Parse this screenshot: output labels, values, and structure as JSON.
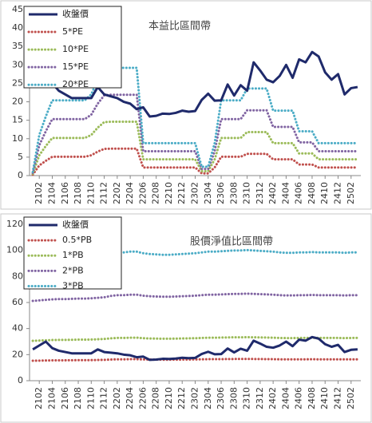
{
  "chart_data": [
    {
      "type": "line",
      "title": "本益比區間帶",
      "categories": [
        null,
        "2102",
        null,
        "2104",
        null,
        "2106",
        null,
        "2108",
        null,
        "2110",
        null,
        "2112",
        null,
        "2202",
        null,
        "2204",
        null,
        "2206",
        null,
        "2208",
        null,
        "2210",
        null,
        "2212",
        null,
        "2302",
        null,
        "2304",
        null,
        "2306",
        null,
        "2308",
        null,
        "2310",
        null,
        "2312",
        null,
        "2402",
        null,
        "2404",
        null,
        "2406",
        null,
        "2408",
        null,
        "2410",
        null,
        "2412",
        null,
        "2502",
        null
      ],
      "ylim": [
        0,
        45
      ],
      "yticks": [
        0,
        5,
        10,
        15,
        20,
        25,
        30,
        35,
        40,
        45
      ],
      "legend": "top-left",
      "series": [
        {
          "name": "收盤價",
          "color": "#1f2a6b",
          "line_style": "solid",
          "values": [
            24,
            27,
            30,
            25,
            23,
            22,
            21,
            21,
            21,
            21,
            24,
            22,
            21.5,
            21,
            20,
            19.5,
            18,
            18.5,
            16,
            16.2,
            16.8,
            16.7,
            17,
            17.6,
            17.3,
            17.5,
            20.5,
            22.2,
            20.3,
            20.4,
            24.7,
            21.7,
            24.5,
            23,
            30.7,
            28.5,
            26,
            25.3,
            27,
            30,
            26.5,
            31.5,
            30.7,
            33.5,
            32.3,
            28,
            26,
            27.5,
            22,
            23.7,
            24
          ]
        },
        {
          "name": "5*PE",
          "color": "#c0504d",
          "line_style": "dotted",
          "values": [
            0.25,
            2.75,
            4,
            5.1,
            5.1,
            5.1,
            5.1,
            5.1,
            5.1,
            5.5,
            6.5,
            7.25,
            7.3,
            7.3,
            7.3,
            7.3,
            7.3,
            2.2,
            2.2,
            2.2,
            2.2,
            2.2,
            2.2,
            2.2,
            2.2,
            2.2,
            0.6,
            0.6,
            2.2,
            5.1,
            5.1,
            5.1,
            5.1,
            5.9,
            5.9,
            5.9,
            5.9,
            4.4,
            4.4,
            4.4,
            4.4,
            3,
            3,
            3,
            2.2,
            2.2,
            2.2,
            2.2,
            2.2,
            2.2,
            2.2
          ]
        },
        {
          "name": "10*PE",
          "color": "#9bbb59",
          "line_style": "dotted",
          "values": [
            0.5,
            5.5,
            8,
            10.2,
            10.2,
            10.2,
            10.2,
            10.2,
            10.2,
            11,
            13,
            14.5,
            14.6,
            14.6,
            14.6,
            14.6,
            14.6,
            4.4,
            4.4,
            4.4,
            4.4,
            4.4,
            4.4,
            4.4,
            4.4,
            4.4,
            1.2,
            1.2,
            4.4,
            10.2,
            10.2,
            10.2,
            10.2,
            11.8,
            11.8,
            11.8,
            11.8,
            8.8,
            8.8,
            8.8,
            8.8,
            6,
            6,
            6,
            4.4,
            4.4,
            4.4,
            4.4,
            4.4,
            4.4,
            4.4
          ]
        },
        {
          "name": "15*PE",
          "color": "#8064a2",
          "line_style": "dotted",
          "values": [
            0.75,
            8.25,
            12,
            15.3,
            15.3,
            15.3,
            15.3,
            15.3,
            15.3,
            16.5,
            19.5,
            21.75,
            21.9,
            21.9,
            21.9,
            21.9,
            21.9,
            6.6,
            6.6,
            6.6,
            6.6,
            6.6,
            6.6,
            6.6,
            6.6,
            6.6,
            1.8,
            1.8,
            6.6,
            15.3,
            15.3,
            15.3,
            15.3,
            17.7,
            17.7,
            17.7,
            17.7,
            13.2,
            13.2,
            13.2,
            13.2,
            9,
            9,
            9,
            6.6,
            6.6,
            6.6,
            6.6,
            6.6,
            6.6,
            6.6
          ]
        },
        {
          "name": "20*PE",
          "color": "#4bacc6",
          "line_style": "dotted",
          "values": [
            1,
            11,
            16,
            20.4,
            20.4,
            20.4,
            20.4,
            20.4,
            20.4,
            22,
            26,
            29,
            29.2,
            29.2,
            29.2,
            29.2,
            29.2,
            8.8,
            8.8,
            8.8,
            8.8,
            8.8,
            8.8,
            8.8,
            8.8,
            8.8,
            2.4,
            2.4,
            8.8,
            20.4,
            20.4,
            20.4,
            20.4,
            23.6,
            23.6,
            23.6,
            23.6,
            17.6,
            17.6,
            17.6,
            17.6,
            12,
            12,
            12,
            8.8,
            8.8,
            8.8,
            8.8,
            8.8,
            8.8,
            8.8
          ]
        }
      ]
    },
    {
      "type": "line",
      "title": "股價淨值比區間帶",
      "categories": [
        null,
        "2102",
        null,
        "2104",
        null,
        "2106",
        null,
        "2108",
        null,
        "2110",
        null,
        "2112",
        null,
        "2202",
        null,
        "2204",
        null,
        "2206",
        null,
        "2208",
        null,
        "2210",
        null,
        "2212",
        null,
        "2302",
        null,
        "2304",
        null,
        "2306",
        null,
        "2308",
        null,
        "2310",
        null,
        "2312",
        null,
        "2402",
        null,
        "2404",
        null,
        "2406",
        null,
        "2408",
        null,
        "2410",
        null,
        "2412",
        null,
        "2502",
        null
      ],
      "ylim": [
        0,
        120
      ],
      "yticks": [
        0,
        20,
        40,
        60,
        80,
        100,
        120
      ],
      "legend": "top-left",
      "series": [
        {
          "name": "收盤價",
          "color": "#1f2a6b",
          "line_style": "solid",
          "values": [
            24,
            27,
            30,
            25,
            23,
            22,
            21,
            21,
            21,
            21,
            24,
            22,
            21.5,
            21,
            20,
            19.5,
            18,
            18.5,
            16,
            16.2,
            16.8,
            16.7,
            17,
            17.6,
            17.3,
            17.5,
            20.5,
            22.2,
            20.3,
            20.4,
            24.7,
            21.7,
            24.5,
            23,
            30.7,
            28.5,
            26,
            25.3,
            27,
            30,
            26.5,
            31.5,
            30.7,
            33.5,
            32.3,
            28,
            26,
            27.5,
            22,
            23.7,
            24
          ]
        },
        {
          "name": "0.5*PB",
          "color": "#c0504d",
          "line_style": "dotted",
          "values": [
            15.3,
            15.4,
            15.5,
            15.6,
            15.65,
            15.65,
            15.7,
            15.75,
            15.75,
            15.8,
            15.9,
            16,
            16.25,
            16.4,
            16.4,
            16.5,
            16.5,
            16.3,
            16.2,
            16.15,
            16.1,
            16.1,
            16.15,
            16.2,
            16.25,
            16.3,
            16.4,
            16.5,
            16.5,
            16.55,
            16.6,
            16.65,
            16.65,
            16.7,
            16.65,
            16.6,
            16.55,
            16.5,
            16.4,
            16.35,
            16.35,
            16.4,
            16.4,
            16.45,
            16.4,
            16.4,
            16.4,
            16.4,
            16.35,
            16.4,
            16.4
          ]
        },
        {
          "name": "1*PB",
          "color": "#9bbb59",
          "line_style": "dotted",
          "values": [
            30.6,
            30.8,
            31,
            31.2,
            31.3,
            31.3,
            31.4,
            31.5,
            31.5,
            31.6,
            31.8,
            32,
            32.5,
            32.8,
            32.8,
            33,
            33,
            32.6,
            32.4,
            32.3,
            32.2,
            32.2,
            32.3,
            32.4,
            32.5,
            32.6,
            32.8,
            33,
            33,
            33.1,
            33.2,
            33.3,
            33.3,
            33.4,
            33.3,
            33.2,
            33.1,
            33,
            32.8,
            32.7,
            32.7,
            32.8,
            32.8,
            32.9,
            32.8,
            32.8,
            32.8,
            32.8,
            32.7,
            32.8,
            32.8
          ]
        },
        {
          "name": "2*PB",
          "color": "#8064a2",
          "line_style": "dotted",
          "values": [
            61.2,
            61.6,
            62,
            62.4,
            62.6,
            62.6,
            62.8,
            63,
            63,
            63.2,
            63.6,
            64,
            65,
            65.6,
            65.6,
            66,
            66,
            65.2,
            64.8,
            64.6,
            64.4,
            64.4,
            64.6,
            64.8,
            65,
            65.2,
            65.6,
            66,
            66,
            66.2,
            66.4,
            66.6,
            66.6,
            66.8,
            66.6,
            66.4,
            66.2,
            66,
            65.6,
            65.4,
            65.4,
            65.6,
            65.6,
            65.8,
            65.6,
            65.6,
            65.6,
            65.6,
            65.4,
            65.6,
            65.6
          ]
        },
        {
          "name": "3*PB",
          "color": "#4bacc6",
          "line_style": "dotted",
          "values": [
            91.8,
            92.4,
            93,
            93.6,
            93.9,
            93.9,
            94.2,
            94.5,
            94.5,
            94.8,
            95.4,
            96,
            97.5,
            98.4,
            98.4,
            99,
            99,
            97.8,
            97.2,
            96.9,
            96.6,
            96.6,
            96.9,
            97.2,
            97.5,
            97.8,
            98.4,
            99,
            99,
            99.3,
            99.6,
            99.9,
            99.9,
            100.2,
            99.9,
            99.6,
            99.3,
            99,
            98.4,
            98.1,
            98.1,
            98.4,
            98.4,
            98.7,
            98.4,
            98.4,
            98.4,
            98.4,
            98.1,
            98.4,
            98.4
          ]
        }
      ]
    }
  ]
}
